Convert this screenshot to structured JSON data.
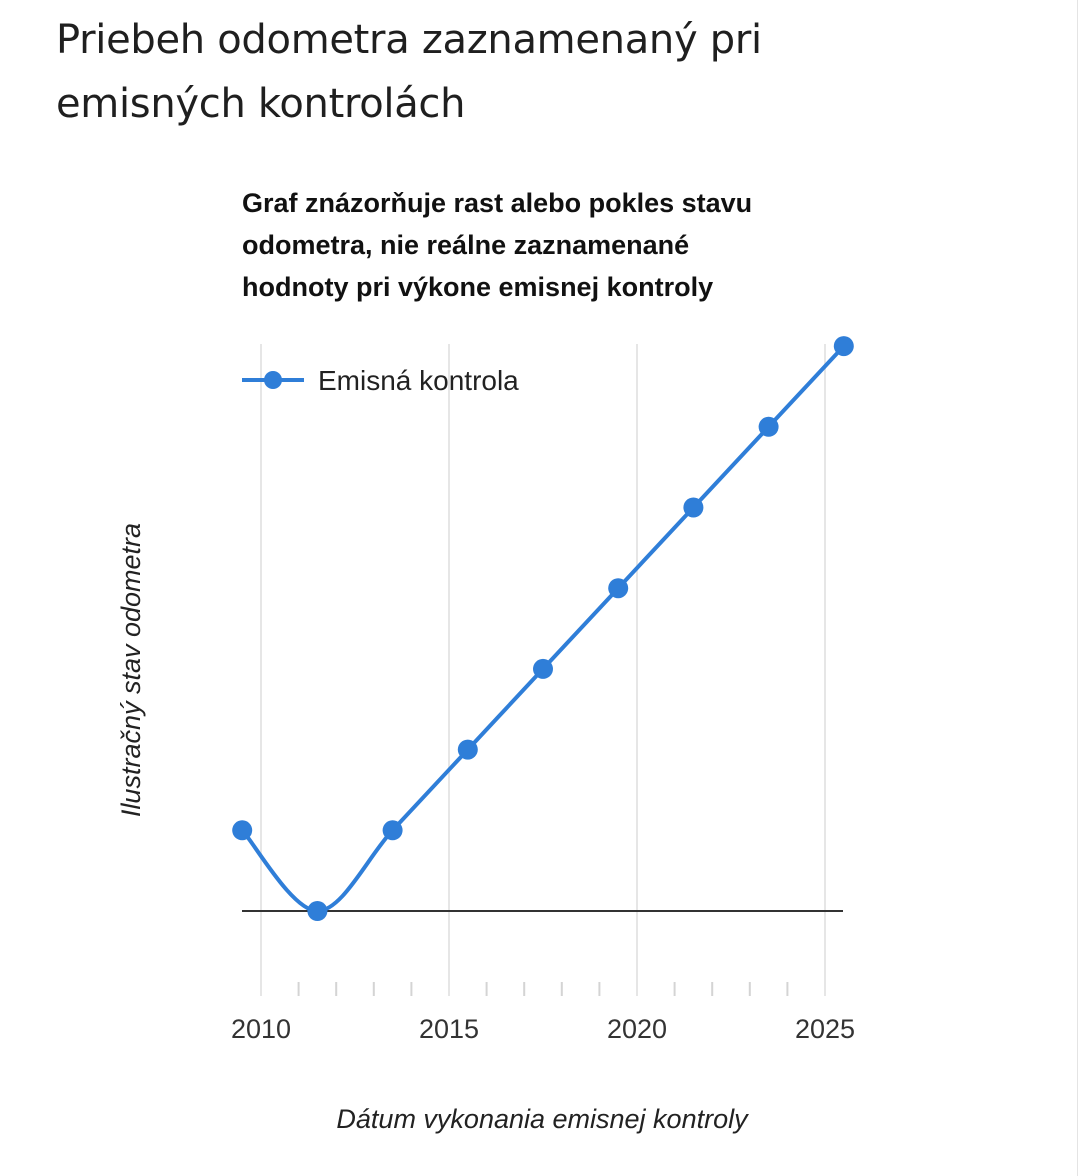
{
  "page": {
    "title": "Priebeh odometra zaznamenaný pri emisných kontrolách"
  },
  "chart_data": {
    "type": "line",
    "title_lines": [
      "Graf znázorňuje rast alebo pokles stavu",
      "odometra, nie reálne zaznamenané",
      "hodnoty pri výkone emisnej kontroly"
    ],
    "xlabel": "Dátum vykonania emisnej kontroly",
    "ylabel": "Ilustračný stav odometra",
    "xlim": [
      2009.0,
      2025.4
    ],
    "ylim": [
      -1,
      7
    ],
    "x_ticks": [
      2010,
      2015,
      2020,
      2025
    ],
    "x_tick_labels": [
      "2010",
      "2015",
      "2020",
      "2025"
    ],
    "x_minor_ticks": [
      2011,
      2012,
      2013,
      2014,
      2016,
      2017,
      2018,
      2019,
      2021,
      2022,
      2023,
      2024
    ],
    "baseline_y": 0,
    "grid": true,
    "legend_position": "top-left",
    "colors": {
      "series": "#2f7ed8",
      "baseline": "#333333",
      "grid": "#e6e6e6"
    },
    "series": [
      {
        "name": "Emisná kontrola",
        "x": [
          2009.5,
          2011.5,
          2013.5,
          2015.5,
          2017.5,
          2019.5,
          2021.5,
          2023.5,
          2025.5
        ],
        "values": [
          1,
          0,
          1,
          2,
          3,
          4,
          5,
          6,
          7
        ]
      }
    ]
  }
}
